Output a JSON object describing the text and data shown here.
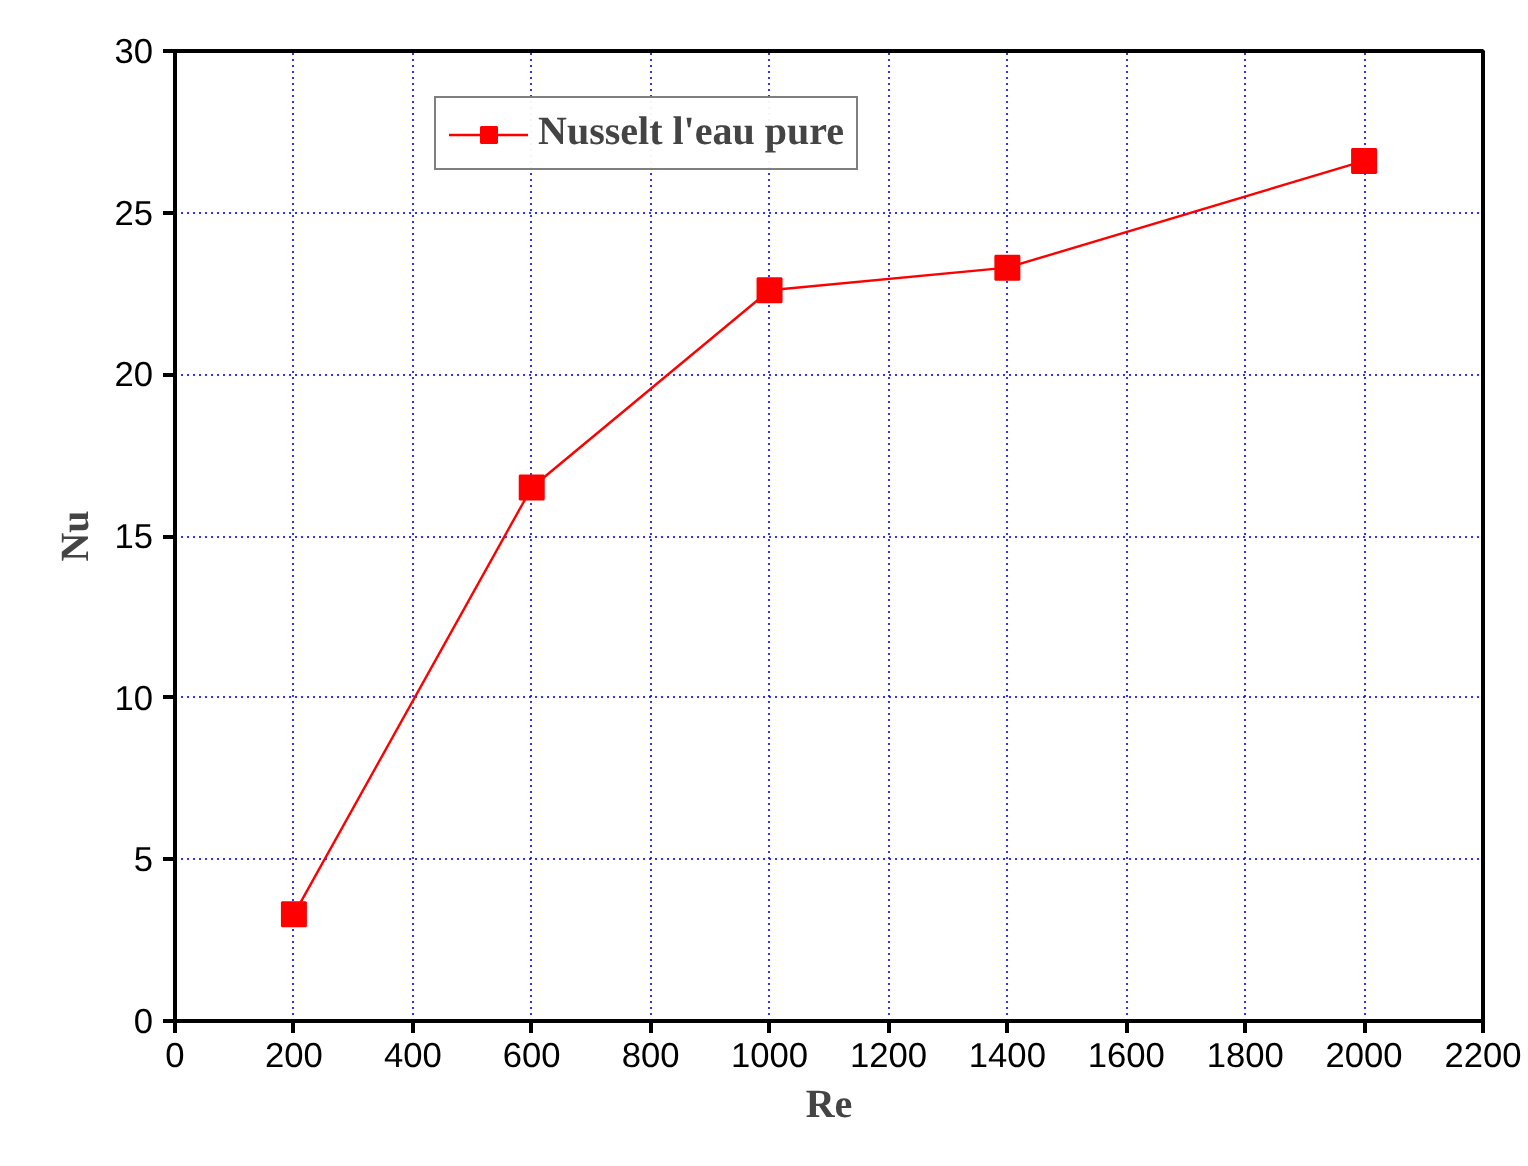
{
  "chart_data": {
    "type": "line",
    "xlabel": "Re",
    "ylabel": "Nu",
    "x": [
      200,
      600,
      1000,
      1400,
      2000
    ],
    "series": [
      {
        "name": "Nusselt l'eau pure",
        "color": "#ff0000",
        "values": [
          3.3,
          16.5,
          22.6,
          23.3,
          26.6
        ]
      }
    ],
    "xlim": [
      0,
      2200
    ],
    "xticks": [
      0,
      200,
      400,
      600,
      800,
      1000,
      1200,
      1400,
      1600,
      1800,
      2000,
      2200
    ],
    "ylim": [
      0,
      30
    ],
    "yticks": [
      0,
      5,
      10,
      15,
      20,
      25,
      30
    ],
    "grid": true,
    "legend": "top",
    "marker": "square",
    "line_style": "solid"
  }
}
